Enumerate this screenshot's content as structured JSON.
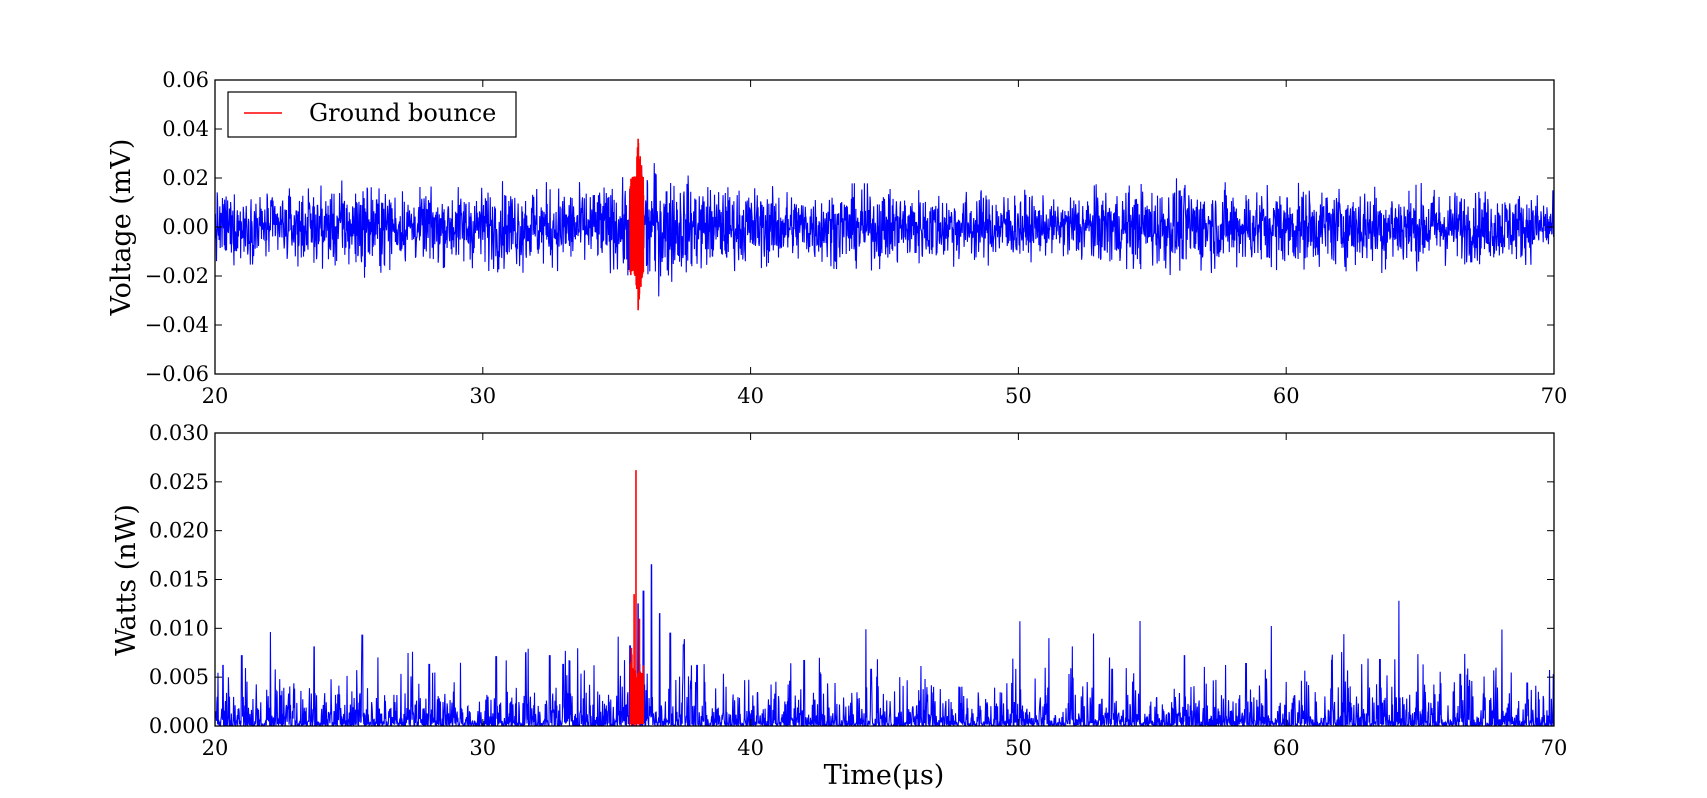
{
  "chart_data": [
    {
      "type": "line",
      "ylabel": "Voltage (mV)",
      "xlim": [
        20,
        70
      ],
      "ylim": [
        -0.06,
        0.06
      ],
      "xticks": [
        "20",
        "30",
        "40",
        "50",
        "60",
        "70"
      ],
      "yticks": [
        "−0.06",
        "−0.04",
        "−0.02",
        "0.00",
        "0.02",
        "0.04",
        "0.06"
      ],
      "grid": false,
      "legend": {
        "position": "top-left",
        "entries": [
          "Ground bounce"
        ]
      },
      "series": [
        {
          "name": "",
          "color": "#0000ff",
          "description": "noise envelope",
          "x": [
            20,
            22,
            24,
            25.5,
            27,
            29,
            31,
            33,
            35,
            35.5,
            36,
            36.5,
            37,
            38,
            39,
            40,
            42,
            44,
            46,
            48,
            50,
            51.5,
            52,
            54,
            56,
            58,
            60,
            62,
            64,
            66,
            68,
            70
          ],
          "amplitude": [
            0.016,
            0.015,
            0.017,
            0.021,
            0.016,
            0.017,
            0.019,
            0.018,
            0.019,
            0.022,
            0.026,
            0.029,
            0.024,
            0.02,
            0.018,
            0.018,
            0.016,
            0.018,
            0.017,
            0.016,
            0.016,
            0.011,
            0.017,
            0.018,
            0.02,
            0.018,
            0.018,
            0.018,
            0.019,
            0.017,
            0.016,
            0.015
          ]
        },
        {
          "name": "Ground bounce",
          "color": "#ff0000",
          "x": [
            35.5,
            35.7,
            35.8,
            36.0
          ],
          "amplitude": [
            0.02,
            0.021,
            0.036,
            0.02
          ]
        }
      ]
    },
    {
      "type": "line",
      "xlabel": "Time(μs)",
      "ylabel": "Watts (nW)",
      "xlim": [
        20,
        70
      ],
      "ylim": [
        0,
        0.03
      ],
      "xticks": [
        "20",
        "30",
        "40",
        "50",
        "60",
        "70"
      ],
      "yticks": [
        "0.000",
        "0.005",
        "0.010",
        "0.015",
        "0.020",
        "0.025",
        "0.030"
      ],
      "grid": false,
      "series": [
        {
          "name": "",
          "color": "#0000ff",
          "peaks": [
            [
              20.3,
              0.0062
            ],
            [
              21,
              0.0072
            ],
            [
              23.7,
              0.0081
            ],
            [
              25.5,
              0.0093
            ],
            [
              28,
              0.0063
            ],
            [
              30.5,
              0.0071
            ],
            [
              31.6,
              0.0075
            ],
            [
              32.5,
              0.0072
            ],
            [
              33,
              0.0063
            ],
            [
              35.5,
              0.0082
            ],
            [
              35.8,
              0.0125
            ],
            [
              36,
              0.0138
            ],
            [
              36.3,
              0.0165
            ],
            [
              36.6,
              0.0115
            ],
            [
              37,
              0.0095
            ],
            [
              37.5,
              0.0083
            ],
            [
              38,
              0.0062
            ],
            [
              42,
              0.0067
            ],
            [
              44.5,
              0.0058
            ],
            [
              53.5,
              0.0058
            ],
            [
              56.2,
              0.0072
            ],
            [
              58.5,
              0.0064
            ],
            [
              61.7,
              0.0067
            ],
            [
              63.5,
              0.0068
            ],
            [
              66.5,
              0.0053
            ],
            [
              69,
              0.0044
            ]
          ],
          "baseline_max": 0.004
        },
        {
          "name": "Ground bounce",
          "color": "#ff0000",
          "peaks": [
            [
              35.55,
              0.008
            ],
            [
              35.65,
              0.0135
            ],
            [
              35.72,
              0.0262
            ],
            [
              35.85,
              0.011
            ]
          ]
        }
      ]
    }
  ]
}
